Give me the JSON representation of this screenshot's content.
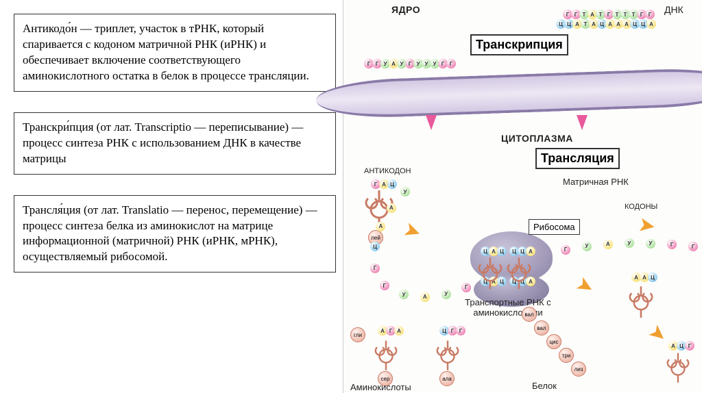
{
  "definitions": [
    {
      "term": "Антикодо́н",
      "text": " — триплет, участок в тРНК, который спаривается с кодоном матричной РНК (иРНК) и обеспечивает включение соответствующего аминокислотного остатка в белок в процессе трансляции."
    },
    {
      "term": "Транскри́пция",
      "text": " (от лат. Transcriptio — переписывание) — процесс синтеза РНК с использованием ДНК в качестве матрицы"
    },
    {
      "term": "Трансля́ция",
      "text": " (от лат. Translatio — перенос, перемещение) — процесс синтеза белка из аминокислот на матрице информационной (матричной) РНК (иРНК, мРНК), осуществляемый рибосомой."
    }
  ],
  "diagram": {
    "labels": {
      "nucleus": "ЯДРО",
      "dna": "ДНК",
      "transcription": "Транскрипция",
      "cytoplasm": "ЦИТОПЛАЗМА",
      "translation": "Трансляция",
      "anticodon": "АНТИКОДОН",
      "mrna": "Матричная РНК",
      "codons": "КОДОНЫ",
      "ribosome": "Рибосома",
      "trna_aa": "Транспортные РНК с аминокислотами",
      "aminoacids": "Аминокислоты",
      "protein": "Белок"
    },
    "dna_top": [
      {
        "l": "Г",
        "c": "#e85a9c"
      },
      {
        "l": "Г",
        "c": "#e85a9c"
      },
      {
        "l": "Т",
        "c": "#8fd67a"
      },
      {
        "l": "А",
        "c": "#f5d84a"
      },
      {
        "l": "Т",
        "c": "#8fd67a"
      },
      {
        "l": "Г",
        "c": "#e85a9c"
      },
      {
        "l": "Т",
        "c": "#8fd67a"
      },
      {
        "l": "Т",
        "c": "#8fd67a"
      },
      {
        "l": "Т",
        "c": "#8fd67a"
      },
      {
        "l": "Г",
        "c": "#e85a9c"
      },
      {
        "l": "Г",
        "c": "#e85a9c"
      }
    ],
    "dna_bot": [
      {
        "l": "Ц",
        "c": "#5fb8e8"
      },
      {
        "l": "Ц",
        "c": "#5fb8e8"
      },
      {
        "l": "А",
        "c": "#f5d84a"
      },
      {
        "l": "Т",
        "c": "#8fd67a"
      },
      {
        "l": "А",
        "c": "#f5d84a"
      },
      {
        "l": "Ц",
        "c": "#5fb8e8"
      },
      {
        "l": "А",
        "c": "#f5d84a"
      },
      {
        "l": "А",
        "c": "#f5d84a"
      },
      {
        "l": "А",
        "c": "#f5d84a"
      },
      {
        "l": "Ц",
        "c": "#5fb8e8"
      },
      {
        "l": "Ц",
        "c": "#5fb8e8"
      },
      {
        "l": "А",
        "c": "#f5d84a"
      }
    ],
    "mrna_top": [
      {
        "l": "Г",
        "c": "#e85a9c"
      },
      {
        "l": "Г",
        "c": "#e85a9c"
      },
      {
        "l": "У",
        "c": "#8fd67a"
      },
      {
        "l": "А",
        "c": "#f5d84a"
      },
      {
        "l": "У",
        "c": "#8fd67a"
      },
      {
        "l": "Г",
        "c": "#e85a9c"
      },
      {
        "l": "У",
        "c": "#8fd67a"
      },
      {
        "l": "У",
        "c": "#8fd67a"
      },
      {
        "l": "У",
        "c": "#8fd67a"
      },
      {
        "l": "Г",
        "c": "#e85a9c"
      },
      {
        "l": "Г",
        "c": "#e85a9c"
      }
    ],
    "mrna_main": [
      {
        "l": "У",
        "c": "#8fd67a"
      },
      {
        "l": "А",
        "c": "#f5d84a"
      },
      {
        "l": "А",
        "c": "#f5d84a"
      },
      {
        "l": "Ц",
        "c": "#5fb8e8"
      },
      {
        "l": "Г",
        "c": "#e85a9c"
      },
      {
        "l": "Г",
        "c": "#e85a9c"
      },
      {
        "l": "У",
        "c": "#8fd67a"
      },
      {
        "l": "А",
        "c": "#f5d84a"
      },
      {
        "l": "У",
        "c": "#8fd67a"
      },
      {
        "l": "Г",
        "c": "#e85a9c"
      },
      {
        "l": "У",
        "c": "#8fd67a"
      },
      {
        "l": "У",
        "c": "#8fd67a"
      },
      {
        "l": "У",
        "c": "#8fd67a"
      },
      {
        "l": "Г",
        "c": "#e85a9c"
      },
      {
        "l": "Г",
        "c": "#e85a9c"
      },
      {
        "l": "У",
        "c": "#8fd67a"
      },
      {
        "l": "А",
        "c": "#f5d84a"
      },
      {
        "l": "У",
        "c": "#8fd67a"
      },
      {
        "l": "У",
        "c": "#8fd67a"
      },
      {
        "l": "Г",
        "c": "#e85a9c"
      },
      {
        "l": "Г",
        "c": "#e85a9c"
      }
    ],
    "anticodon_triplet_1": [
      {
        "l": "Г",
        "c": "#e85a9c"
      },
      {
        "l": "А",
        "c": "#f5d84a"
      },
      {
        "l": "Ц",
        "c": "#5fb8e8"
      }
    ],
    "anticodon_triplet_2": [
      {
        "l": "Ц",
        "c": "#5fb8e8"
      },
      {
        "l": "А",
        "c": "#f5d84a"
      },
      {
        "l": "Ц",
        "c": "#5fb8e8"
      }
    ],
    "anticodon_triplet_3": [
      {
        "l": "Ц",
        "c": "#5fb8e8"
      },
      {
        "l": "Ц",
        "c": "#5fb8e8"
      },
      {
        "l": "А",
        "c": "#f5d84a"
      }
    ],
    "codon_ribo_1": [
      {
        "l": "Ц",
        "c": "#5fb8e8"
      },
      {
        "l": "А",
        "c": "#f5d84a"
      },
      {
        "l": "Ц",
        "c": "#5fb8e8"
      }
    ],
    "codon_ribo_2": [
      {
        "l": "Ц",
        "c": "#5fb8e8"
      },
      {
        "l": "Ц",
        "c": "#5fb8e8"
      },
      {
        "l": "А",
        "c": "#f5d84a"
      }
    ],
    "trna_triplets": {
      "aga": [
        {
          "l": "А",
          "c": "#f5d84a"
        },
        {
          "l": "Г",
          "c": "#e85a9c"
        },
        {
          "l": "А",
          "c": "#f5d84a"
        }
      ],
      "cgg": [
        {
          "l": "Ц",
          "c": "#5fb8e8"
        },
        {
          "l": "Г",
          "c": "#e85a9c"
        },
        {
          "l": "Г",
          "c": "#e85a9c"
        }
      ],
      "aac": [
        {
          "l": "А",
          "c": "#f5d84a"
        },
        {
          "l": "А",
          "c": "#f5d84a"
        },
        {
          "l": "Ц",
          "c": "#5fb8e8"
        }
      ],
      "acg": [
        {
          "l": "А",
          "c": "#f5d84a"
        },
        {
          "l": "Ц",
          "c": "#5fb8e8"
        },
        {
          "l": "Г",
          "c": "#e85a9c"
        }
      ]
    },
    "amino_acids": {
      "leu": "лей",
      "val": "вал",
      "val2": "вал",
      "cys": "цис",
      "gly": "гли",
      "ser": "сер",
      "ala": "ала",
      "trp": "три",
      "lys": "лиз"
    },
    "colors": {
      "nucleus_bg": "#fdfdfb",
      "membrane_border": "#8a7aa8",
      "membrane_fill": "#e3dbed",
      "ribosome": "#9890b0",
      "trna": "#e8a896",
      "arrow_pink": "#e85a9c",
      "arrow_orange": "#f0a030",
      "base_A": "#f5d84a",
      "base_T_U": "#8fd67a",
      "base_G": "#e85a9c",
      "base_C": "#5fb8e8",
      "aa_fill": "#e8a896"
    },
    "fontsize": {
      "label": 14,
      "big": 18,
      "caps": 14
    }
  }
}
